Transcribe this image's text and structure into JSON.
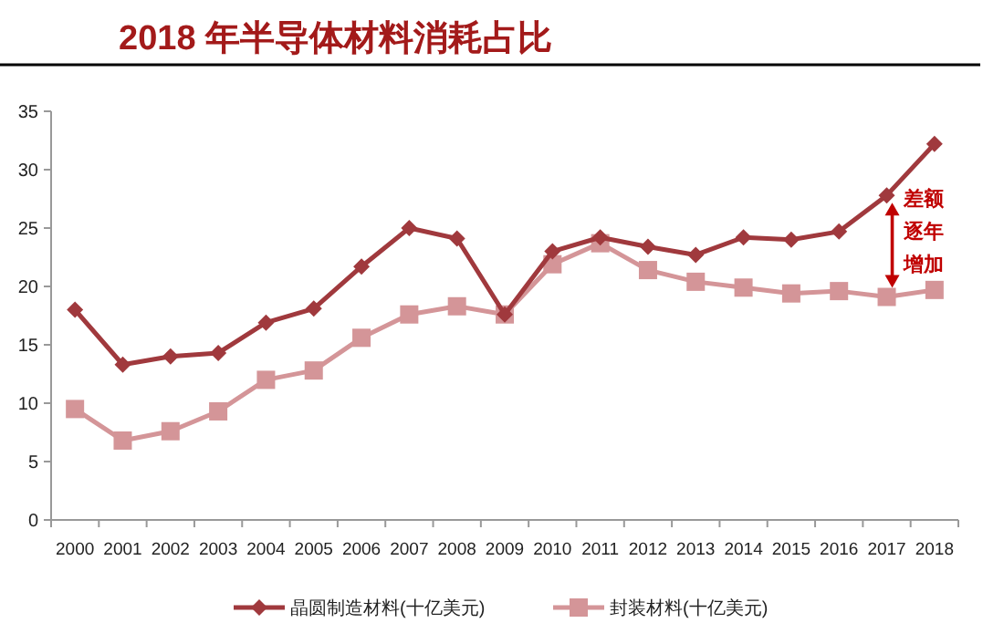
{
  "chart_data": {
    "type": "line",
    "title": "2018 年半导体材料消耗占比",
    "categories": [
      "2000",
      "2001",
      "2002",
      "2003",
      "2004",
      "2005",
      "2006",
      "2007",
      "2008",
      "2009",
      "2010",
      "2011",
      "2012",
      "2013",
      "2014",
      "2015",
      "2016",
      "2017",
      "2018"
    ],
    "series": [
      {
        "name": "晶圆制造材料(十亿美元)",
        "color": "#a0393d",
        "marker": "diamond",
        "values": [
          18,
          13.3,
          14,
          14.3,
          16.9,
          18.1,
          21.7,
          25,
          24.1,
          17.6,
          23,
          24.2,
          23.4,
          22.7,
          24.2,
          24,
          24.7,
          27.8,
          32.2
        ]
      },
      {
        "name": "封装材料(十亿美元)",
        "color": "#d49598",
        "marker": "square",
        "values": [
          9.5,
          6.8,
          7.6,
          9.3,
          12,
          12.8,
          15.6,
          17.6,
          18.3,
          17.6,
          21.9,
          23.7,
          21.4,
          20.4,
          19.9,
          19.4,
          19.6,
          19.1,
          19.7
        ]
      }
    ],
    "ylim": [
      0,
      35
    ],
    "yticks": [
      0,
      5,
      10,
      15,
      20,
      25,
      30,
      35
    ],
    "grid": false,
    "legend": "bottom",
    "annotations": [
      "差额逐年增加"
    ]
  }
}
